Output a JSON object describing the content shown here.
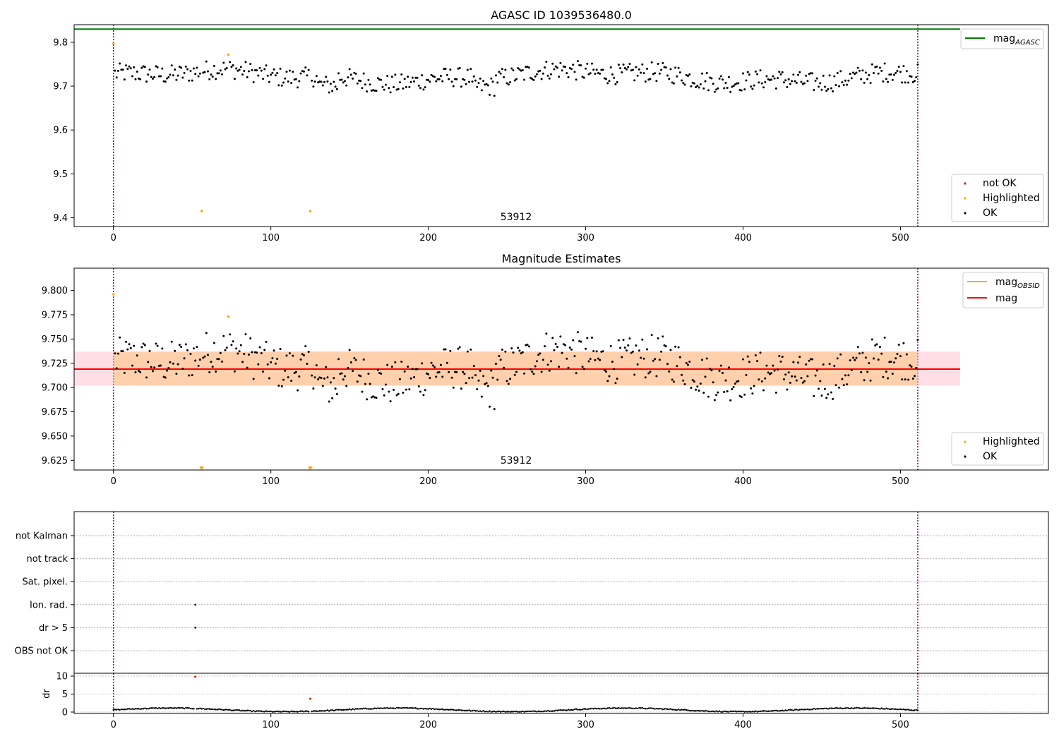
{
  "panel1": {
    "title": "AGASC ID 1039536480.0",
    "obsid_label": "53912",
    "xlim": [
      -25,
      594
    ],
    "ylim": [
      9.38,
      9.84
    ],
    "xticks": [
      0,
      100,
      200,
      300,
      400,
      500
    ],
    "yticks": [
      9.4,
      9.5,
      9.6,
      9.7,
      9.8
    ],
    "mag_agasc": 9.83,
    "legend_line": {
      "label": "mag",
      "sub": "AGASC",
      "color": "#008000"
    },
    "legend_points": [
      {
        "label": "not OK",
        "color": "#ff0000"
      },
      {
        "label": "Highlighted",
        "color": "#ffa500"
      },
      {
        "label": "OK",
        "color": "#000000"
      }
    ],
    "vlines": [
      0,
      511
    ],
    "highlighted": [
      [
        0,
        9.797
      ],
      [
        56,
        9.415
      ],
      [
        73,
        9.772
      ],
      [
        125,
        9.415
      ]
    ]
  },
  "panel2": {
    "title": "Magnitude Estimates",
    "obsid_label": "53912",
    "xlim": [
      -25,
      594
    ],
    "ylim": [
      9.615,
      9.823
    ],
    "xticks": [
      0,
      100,
      200,
      300,
      400,
      500
    ],
    "yticks": [
      9.625,
      9.65,
      9.675,
      9.7,
      9.725,
      9.75,
      9.775,
      9.8
    ],
    "mag": 9.719,
    "band_lo": 9.702,
    "band_hi": 9.737,
    "legend_lines": [
      {
        "label": "mag",
        "sub": "OBSID",
        "color": "#ffa500"
      },
      {
        "label": "mag",
        "sub": "",
        "color": "#ff0000"
      }
    ],
    "legend_points": [
      {
        "label": "Highlighted",
        "color": "#ffa500"
      },
      {
        "label": "OK",
        "color": "#000000"
      }
    ],
    "vlines": [
      0,
      511
    ],
    "highlighted": [
      [
        0,
        9.796
      ],
      [
        73,
        9.773
      ]
    ],
    "below_range_markers": [
      56,
      125
    ]
  },
  "panel3": {
    "flag_labels": [
      "not Kalman",
      "not track",
      "Sat. pixel.",
      "Ion. rad.",
      "dr > 5",
      "OBS not OK"
    ],
    "flag_points": [
      [
        52,
        "Ion. rad."
      ],
      [
        52,
        "dr > 5"
      ]
    ],
    "xlim": [
      -25,
      594
    ],
    "xticks": [
      0,
      100,
      200,
      300,
      400,
      500
    ],
    "vlines": [
      0,
      511
    ]
  },
  "panel4": {
    "ylabel": "dr",
    "ylim": [
      0,
      10
    ],
    "yticks": [
      0,
      5,
      10
    ],
    "xlim": [
      -25,
      594
    ],
    "xticks": [
      0,
      100,
      200,
      300,
      400,
      500
    ],
    "red_points": [
      [
        52,
        9.8
      ],
      [
        125,
        3.7
      ]
    ]
  },
  "chart_data": [
    {
      "type": "scatter",
      "title": "AGASC ID 1039536480.0",
      "xlabel": "",
      "ylabel": "",
      "xlim": [
        -25,
        594
      ],
      "ylim": [
        9.38,
        9.84
      ],
      "horizontal_lines": [
        {
          "name": "mag_AGASC",
          "y": 9.83,
          "color": "#008000"
        }
      ],
      "series": [
        {
          "name": "not OK",
          "points": []
        },
        {
          "name": "Highlighted",
          "points": [
            [
              0,
              9.797
            ],
            [
              56,
              9.415
            ],
            [
              73,
              9.772
            ],
            [
              125,
              9.415
            ]
          ]
        },
        {
          "name": "OK",
          "n_points": 510,
          "x_range": [
            0,
            511
          ],
          "y_range": [
            9.677,
            9.762
          ],
          "y_typical": 9.72
        }
      ],
      "legend": "upper-right (line), lower-right (points)",
      "annotation": "53912"
    },
    {
      "type": "scatter",
      "title": "Magnitude Estimates",
      "xlim": [
        -25,
        594
      ],
      "ylim": [
        9.615,
        9.823
      ],
      "horizontal_lines": [
        {
          "name": "mag",
          "y": 9.719,
          "color": "#ff0000"
        }
      ],
      "band": {
        "y_lo": 9.702,
        "y_hi": 9.737
      },
      "series": [
        {
          "name": "Highlighted",
          "points": [
            [
              0,
              9.796
            ],
            [
              73,
              9.773
            ]
          ]
        },
        {
          "name": "OK",
          "n_points": 510,
          "x_range": [
            0,
            511
          ],
          "y_range": [
            9.677,
            9.762
          ],
          "y_typical": 9.72
        }
      ],
      "legend": "upper-right (lines), lower-right (points)",
      "annotation": "53912"
    },
    {
      "type": "scatter",
      "ylabel": "dr",
      "ylim": [
        0,
        10
      ],
      "series": [
        {
          "name": "dr",
          "n_points": 510,
          "y_range": [
            0.05,
            1.5
          ]
        },
        {
          "name": "dr flagged",
          "points": [
            [
              52,
              9.8
            ],
            [
              125,
              3.7
            ]
          ]
        }
      ]
    }
  ]
}
